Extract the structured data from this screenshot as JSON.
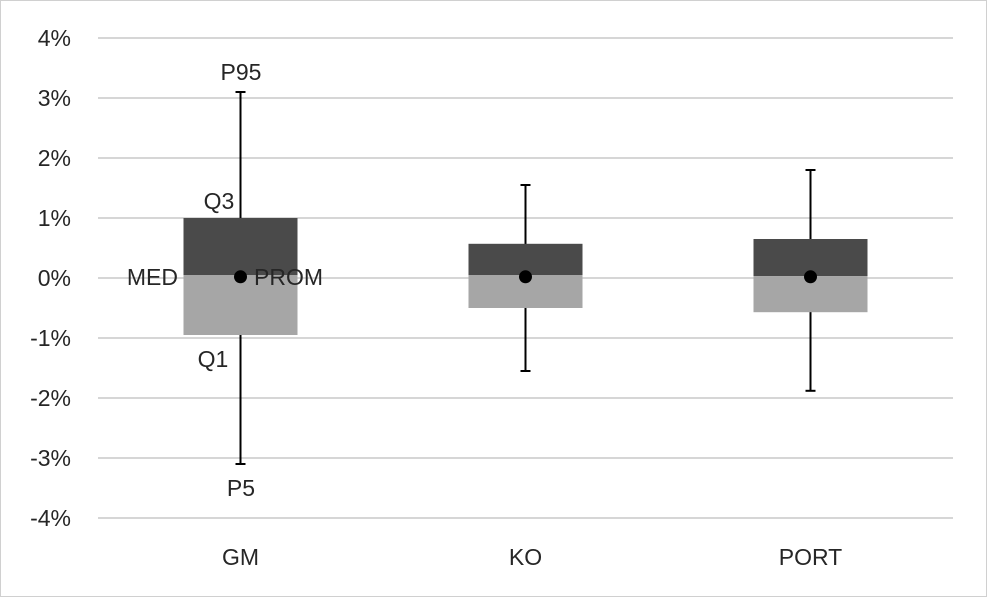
{
  "chart_data": {
    "type": "box",
    "title": "",
    "xlabel": "",
    "ylabel": "",
    "ylim": [
      -4,
      4
    ],
    "yticks": [
      "4%",
      "3%",
      "2%",
      "1%",
      "0%",
      "-1%",
      "-2%",
      "-3%",
      "-4%"
    ],
    "ytick_values": [
      4,
      3,
      2,
      1,
      0,
      -1,
      -2,
      -3,
      -4
    ],
    "grid": true,
    "categories": [
      "GM",
      "KO",
      "PORT"
    ],
    "series": [
      {
        "category": "GM",
        "p5": -3.1,
        "q1": -0.95,
        "median": 0.05,
        "mean": 0.02,
        "q3": 1.0,
        "p95": 3.1
      },
      {
        "category": "KO",
        "p5": -1.55,
        "q1": -0.5,
        "median": 0.05,
        "mean": 0.02,
        "q3": 0.57,
        "p95": 1.55
      },
      {
        "category": "PORT",
        "p5": -1.88,
        "q1": -0.57,
        "median": 0.03,
        "mean": 0.02,
        "q3": 0.65,
        "p95": 1.8
      }
    ],
    "colors": {
      "upper_box": "#4a4a4a",
      "lower_box": "#a6a6a6",
      "whisker": "#000000",
      "mean_dot": "#000000",
      "grid": "#c8c8c8"
    },
    "annotations": {
      "p95": "P95",
      "q3": "Q3",
      "median": "MED",
      "mean": "PROM",
      "q1": "Q1",
      "p5": "P5"
    }
  }
}
